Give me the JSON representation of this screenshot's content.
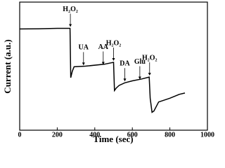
{
  "chart_data": {
    "type": "line",
    "x_label": "Time (sec)",
    "y_label": "Current (a.u.)",
    "x": [
      0,
      100,
      200,
      268,
      272,
      280,
      290,
      350,
      450,
      500,
      505,
      515,
      530,
      560,
      600,
      650,
      690,
      695,
      705,
      715,
      740,
      800,
      850,
      880
    ],
    "values": [
      7.9,
      7.92,
      7.95,
      7.95,
      4.1,
      4.6,
      4.95,
      5.0,
      5.15,
      5.3,
      3.1,
      3.3,
      3.5,
      3.7,
      3.85,
      4.0,
      4.15,
      2.5,
      1.4,
      1.5,
      2.2,
      2.5,
      2.8,
      2.9
    ],
    "color": "#000000",
    "xlim": [
      0,
      1000
    ],
    "xticks": [
      0,
      200,
      400,
      600,
      800,
      1000
    ],
    "ylim": [
      0,
      10
    ],
    "annotations": [
      {
        "text": "H₂O₂",
        "x": 270
      },
      {
        "text": "UA",
        "x": 340
      },
      {
        "text": "AA",
        "x": 445
      },
      {
        "text": "H₂O₂",
        "x": 500
      },
      {
        "text": "DA",
        "x": 560
      },
      {
        "text": "Glu",
        "x": 640
      },
      {
        "text": "H₂O₂",
        "x": 692
      }
    ]
  }
}
